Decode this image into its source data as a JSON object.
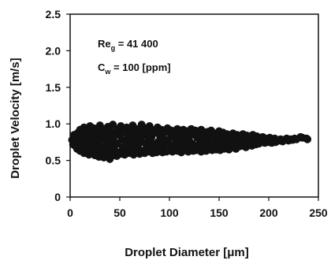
{
  "chart_data": {
    "type": "scatter",
    "xlabel": "Droplet Diameter [μm]",
    "ylabel": "Droplet Velocity [m/s]",
    "xlim": [
      0,
      250
    ],
    "ylim": [
      0,
      2.5
    ],
    "x_ticks": [
      "0",
      "50",
      "100",
      "150",
      "200",
      "250"
    ],
    "y_ticks": [
      "0",
      "0.5",
      "1.0",
      "1.5",
      "2.0",
      "2.5"
    ],
    "grid": false,
    "legend": "none",
    "annotations": {
      "re_main": "Re",
      "re_sub": "g",
      "re_value": " = 41 400",
      "c_main": "C",
      "c_sub": "w",
      "c_value": " = 100 [ppm]"
    },
    "series": [
      {
        "color": "#111111",
        "points": [
          [
            2,
            0.78
          ],
          [
            3,
            0.72
          ],
          [
            4,
            0.85
          ],
          [
            5,
            0.7
          ],
          [
            5,
            0.81
          ],
          [
            6,
            0.76
          ],
          [
            7,
            0.66
          ],
          [
            8,
            0.88
          ],
          [
            8,
            0.74
          ],
          [
            9,
            0.8
          ],
          [
            10,
            0.63
          ],
          [
            10,
            0.92
          ],
          [
            11,
            0.77
          ],
          [
            12,
            0.7
          ],
          [
            12,
            0.86
          ],
          [
            13,
            0.82
          ],
          [
            14,
            0.6
          ],
          [
            14,
            0.95
          ],
          [
            15,
            0.73
          ],
          [
            16,
            0.84
          ],
          [
            17,
            0.67
          ],
          [
            18,
            0.9
          ],
          [
            18,
            0.78
          ],
          [
            19,
            0.58
          ],
          [
            20,
            0.75
          ],
          [
            20,
            0.97
          ],
          [
            21,
            0.69
          ],
          [
            22,
            0.87
          ],
          [
            22,
            0.62
          ],
          [
            23,
            0.8
          ],
          [
            24,
            0.94
          ],
          [
            25,
            0.57
          ],
          [
            25,
            0.72
          ],
          [
            26,
            0.83
          ],
          [
            27,
            0.65
          ],
          [
            28,
            0.91
          ],
          [
            28,
            0.76
          ],
          [
            29,
            0.55
          ],
          [
            30,
            0.98
          ],
          [
            30,
            0.7
          ],
          [
            31,
            0.85
          ],
          [
            32,
            0.6
          ],
          [
            33,
            0.79
          ],
          [
            34,
            0.93
          ],
          [
            34,
            0.54
          ],
          [
            35,
            0.68
          ],
          [
            36,
            0.88
          ],
          [
            37,
            0.58
          ],
          [
            37,
            0.75
          ],
          [
            38,
            0.96
          ],
          [
            39,
            0.63
          ],
          [
            40,
            0.82
          ],
          [
            40,
            0.52
          ],
          [
            41,
            0.9
          ],
          [
            42,
            0.71
          ],
          [
            43,
            0.57
          ],
          [
            43,
            0.99
          ],
          [
            44,
            0.77
          ],
          [
            45,
            0.64
          ],
          [
            46,
            0.86
          ],
          [
            47,
            0.56
          ],
          [
            48,
            0.93
          ],
          [
            48,
            0.73
          ],
          [
            49,
            0.61
          ],
          [
            50,
            0.84
          ],
          [
            51,
            0.97
          ],
          [
            52,
            0.59
          ],
          [
            52,
            0.78
          ],
          [
            53,
            0.67
          ],
          [
            54,
            0.89
          ],
          [
            55,
            0.58
          ],
          [
            56,
            0.75
          ],
          [
            57,
            0.95
          ],
          [
            57,
            0.62
          ],
          [
            58,
            0.83
          ],
          [
            59,
            0.7
          ],
          [
            60,
            0.6
          ],
          [
            61,
            0.91
          ],
          [
            62,
            0.77
          ],
          [
            62,
            0.64
          ],
          [
            63,
            0.98
          ],
          [
            64,
            0.58
          ],
          [
            65,
            0.86
          ],
          [
            66,
            0.72
          ],
          [
            67,
            0.61
          ],
          [
            67,
            0.93
          ],
          [
            68,
            0.8
          ],
          [
            69,
            0.66
          ],
          [
            70,
            0.59
          ],
          [
            71,
            0.89
          ],
          [
            72,
            0.75
          ],
          [
            72,
            0.99
          ],
          [
            73,
            0.63
          ],
          [
            74,
            0.84
          ],
          [
            75,
            0.6
          ],
          [
            76,
            0.94
          ],
          [
            77,
            0.7
          ],
          [
            78,
            0.62
          ],
          [
            78,
            0.87
          ],
          [
            79,
            0.78
          ],
          [
            80,
            0.97
          ],
          [
            81,
            0.64
          ],
          [
            82,
            0.82
          ],
          [
            83,
            0.6
          ],
          [
            84,
            0.91
          ],
          [
            84,
            0.73
          ],
          [
            85,
            0.66
          ],
          [
            86,
            0.88
          ],
          [
            87,
            0.61
          ],
          [
            88,
            0.95
          ],
          [
            89,
            0.76
          ],
          [
            90,
            0.63
          ],
          [
            90,
            0.85
          ],
          [
            91,
            0.7
          ],
          [
            92,
            0.92
          ],
          [
            93,
            0.61
          ],
          [
            94,
            0.8
          ],
          [
            95,
            0.66
          ],
          [
            96,
            0.89
          ],
          [
            96,
            0.74
          ],
          [
            97,
            0.62
          ],
          [
            98,
            0.94
          ],
          [
            99,
            0.78
          ],
          [
            100,
            0.64
          ],
          [
            101,
            0.86
          ],
          [
            102,
            0.71
          ],
          [
            102,
            0.91
          ],
          [
            103,
            0.62
          ],
          [
            104,
            0.82
          ],
          [
            105,
            0.67
          ],
          [
            106,
            0.89
          ],
          [
            107,
            0.75
          ],
          [
            108,
            0.63
          ],
          [
            108,
            0.93
          ],
          [
            109,
            0.79
          ],
          [
            110,
            0.66
          ],
          [
            111,
            0.87
          ],
          [
            112,
            0.61
          ],
          [
            113,
            0.84
          ],
          [
            114,
            0.72
          ],
          [
            114,
            0.92
          ],
          [
            115,
            0.64
          ],
          [
            116,
            0.8
          ],
          [
            117,
            0.68
          ],
          [
            118,
            0.9
          ],
          [
            119,
            0.62
          ],
          [
            120,
            0.77
          ],
          [
            120,
            0.86
          ],
          [
            121,
            0.66
          ],
          [
            122,
            0.93
          ],
          [
            123,
            0.73
          ],
          [
            124,
            0.63
          ],
          [
            125,
            0.85
          ],
          [
            126,
            0.7
          ],
          [
            126,
            0.91
          ],
          [
            127,
            0.64
          ],
          [
            128,
            0.81
          ],
          [
            129,
            0.67
          ],
          [
            130,
            0.88
          ],
          [
            131,
            0.74
          ],
          [
            132,
            0.62
          ],
          [
            132,
            0.92
          ],
          [
            133,
            0.79
          ],
          [
            134,
            0.66
          ],
          [
            135,
            0.86
          ],
          [
            136,
            0.71
          ],
          [
            137,
            0.63
          ],
          [
            138,
            0.89
          ],
          [
            138,
            0.76
          ],
          [
            139,
            0.65
          ],
          [
            140,
            0.84
          ],
          [
            141,
            0.7
          ],
          [
            142,
            0.91
          ],
          [
            143,
            0.64
          ],
          [
            144,
            0.8
          ],
          [
            144,
            0.67
          ],
          [
            145,
            0.87
          ],
          [
            146,
            0.73
          ],
          [
            147,
            0.65
          ],
          [
            148,
            0.85
          ],
          [
            149,
            0.69
          ],
          [
            150,
            0.9
          ],
          [
            150,
            0.77
          ],
          [
            151,
            0.64
          ],
          [
            152,
            0.82
          ],
          [
            153,
            0.71
          ],
          [
            154,
            0.88
          ],
          [
            155,
            0.66
          ],
          [
            156,
            0.79
          ],
          [
            157,
            0.69
          ],
          [
            158,
            0.86
          ],
          [
            159,
            0.73
          ],
          [
            160,
            0.65
          ],
          [
            161,
            0.84
          ],
          [
            162,
            0.77
          ],
          [
            163,
            0.68
          ],
          [
            164,
            0.87
          ],
          [
            165,
            0.72
          ],
          [
            166,
            0.8
          ],
          [
            167,
            0.66
          ],
          [
            168,
            0.85
          ],
          [
            169,
            0.74
          ],
          [
            170,
            0.69
          ],
          [
            171,
            0.83
          ],
          [
            172,
            0.77
          ],
          [
            173,
            0.7
          ],
          [
            174,
            0.86
          ],
          [
            175,
            0.73
          ],
          [
            176,
            0.79
          ],
          [
            177,
            0.68
          ],
          [
            178,
            0.84
          ],
          [
            179,
            0.75
          ],
          [
            180,
            0.71
          ],
          [
            181,
            0.82
          ],
          [
            182,
            0.77
          ],
          [
            183,
            0.7
          ],
          [
            184,
            0.85
          ],
          [
            185,
            0.74
          ],
          [
            186,
            0.8
          ],
          [
            187,
            0.72
          ],
          [
            188,
            0.83
          ],
          [
            189,
            0.76
          ],
          [
            190,
            0.73
          ],
          [
            191,
            0.81
          ],
          [
            192,
            0.78
          ],
          [
            193,
            0.75
          ],
          [
            194,
            0.82
          ],
          [
            195,
            0.77
          ],
          [
            196,
            0.74
          ],
          [
            197,
            0.8
          ],
          [
            198,
            0.76
          ],
          [
            199,
            0.79
          ],
          [
            200,
            0.75
          ],
          [
            201,
            0.81
          ],
          [
            202,
            0.77
          ],
          [
            203,
            0.74
          ],
          [
            204,
            0.79
          ],
          [
            205,
            0.76
          ],
          [
            206,
            0.8
          ],
          [
            207,
            0.75
          ],
          [
            208,
            0.78
          ],
          [
            210,
            0.77
          ],
          [
            212,
            0.79
          ],
          [
            214,
            0.76
          ],
          [
            216,
            0.78
          ],
          [
            218,
            0.8
          ],
          [
            220,
            0.77
          ],
          [
            222,
            0.79
          ],
          [
            224,
            0.78
          ],
          [
            226,
            0.8
          ],
          [
            228,
            0.79
          ],
          [
            232,
            0.82
          ],
          [
            234,
            0.81
          ],
          [
            238,
            0.8
          ],
          [
            239,
            0.79
          ]
        ]
      }
    ]
  }
}
